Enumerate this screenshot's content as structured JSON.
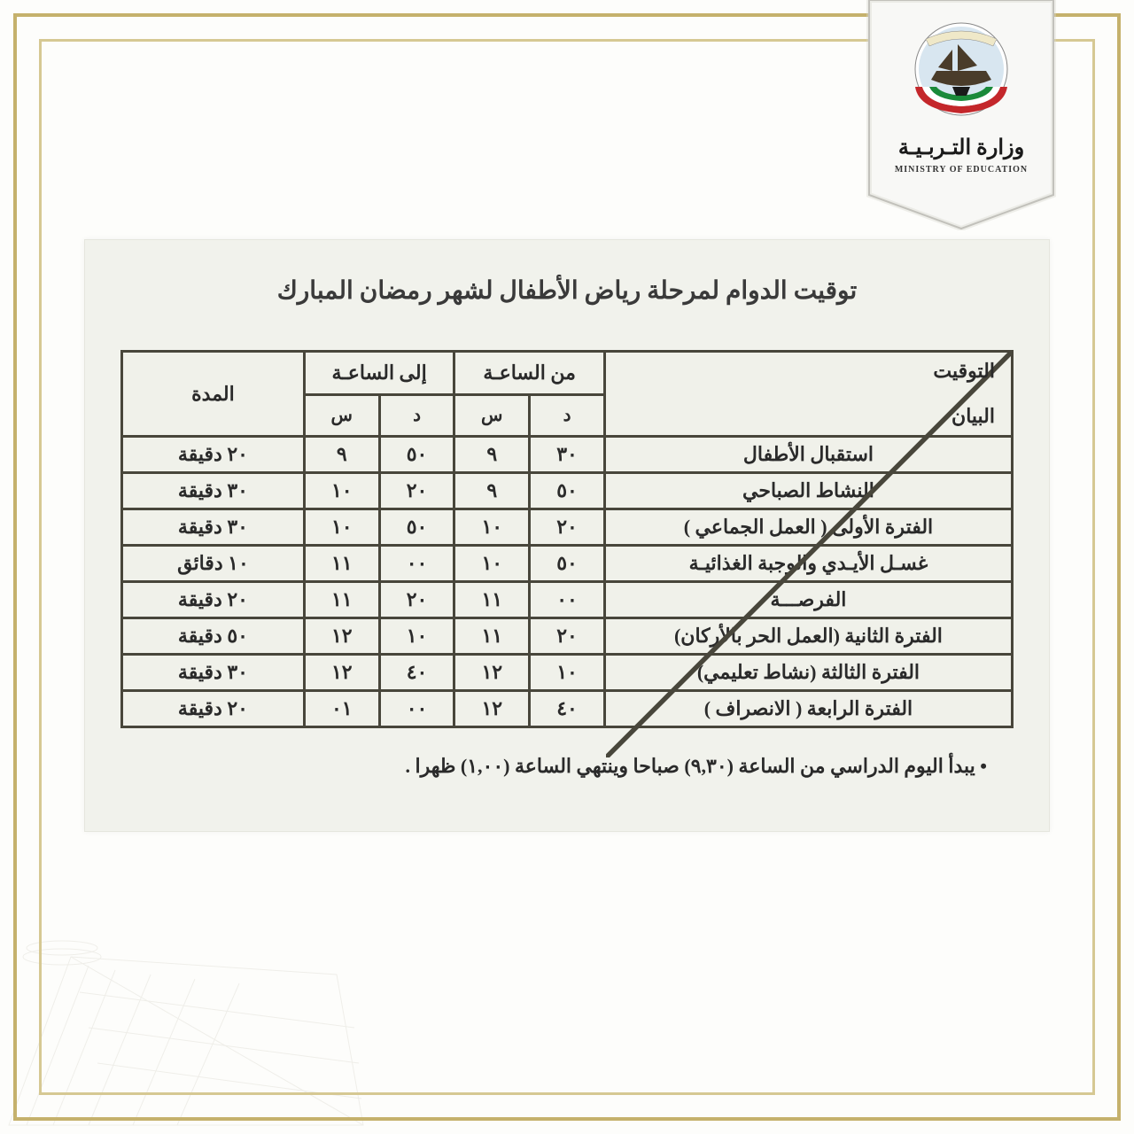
{
  "frame": {
    "outer_border_color": "#c5b16c",
    "inner_border_color": "#d6c893",
    "background_color": "#fdfdfb"
  },
  "banner": {
    "label_ar": "وزارة التـربـيـة",
    "label_en": "MINISTRY OF EDUCATION",
    "banner_fill": "#f8f8f6",
    "banner_border": "#b4b3ad"
  },
  "document": {
    "paper_bg": "#f1f2ec",
    "title": "توقيت الدوام لمرحلة رياض الأطفال لشهر رمضان المبارك",
    "note": "يبدأ اليوم الدراسي من الساعة (٩,٣٠) صباحا وينتهي الساعة (١,٠٠) ظهرا ."
  },
  "table": {
    "type": "table",
    "border_color": "#48463b",
    "header_diag_top": "التوقيت",
    "header_diag_bottom": "البيان",
    "header_from": "من الساعـة",
    "header_to": "إلى الساعـة",
    "header_duration": "المدة",
    "sub_d": "د",
    "sub_s": "س",
    "font_size": 22,
    "text_color": "#2a2a2a",
    "rows": [
      {
        "bayan": "استقبال الأطفال",
        "from_d": "٣٠",
        "from_s": "٩",
        "to_d": "٥٠",
        "to_s": "٩",
        "duration": "٢٠ دقيقة"
      },
      {
        "bayan": "النشاط الصباحي",
        "from_d": "٥٠",
        "from_s": "٩",
        "to_d": "٢٠",
        "to_s": "١٠",
        "duration": "٣٠ دقيقة"
      },
      {
        "bayan": "الفترة الأولى ( العمل الجماعي )",
        "from_d": "٢٠",
        "from_s": "١٠",
        "to_d": "٥٠",
        "to_s": "١٠",
        "duration": "٣٠ دقيقة"
      },
      {
        "bayan": "غسـل الأيـدي والوجبة الغذائيـة",
        "from_d": "٥٠",
        "from_s": "١٠",
        "to_d": "٠٠",
        "to_s": "١١",
        "duration": "١٠ دقائق"
      },
      {
        "bayan": "الفرصـــة",
        "from_d": "٠٠",
        "from_s": "١١",
        "to_d": "٢٠",
        "to_s": "١١",
        "duration": "٢٠ دقيقة"
      },
      {
        "bayan": "الفترة الثانية (العمل الحر بالأركان)",
        "from_d": "٢٠",
        "from_s": "١١",
        "to_d": "١٠",
        "to_s": "١٢",
        "duration": "٥٠ دقيقة"
      },
      {
        "bayan": "الفترة الثالثة (نشاط تعليمي)",
        "from_d": "١٠",
        "from_s": "١٢",
        "to_d": "٤٠",
        "to_s": "١٢",
        "duration": "٣٠ دقيقة"
      },
      {
        "bayan": "الفترة الرابعة ( الانصراف )",
        "from_d": "٤٠",
        "from_s": "١٢",
        "to_d": "٠٠",
        "to_s": "٠١",
        "duration": "٢٠ دقيقة"
      }
    ]
  }
}
